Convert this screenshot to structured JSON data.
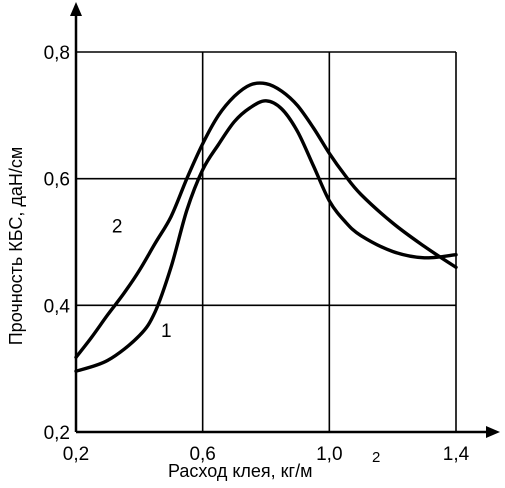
{
  "chart_data": {
    "type": "line",
    "title": "",
    "xlabel": "Расход клея, кг/м",
    "xlabel_superscript": "2",
    "ylabel": "Прочность КБС, даН/см",
    "xlim": [
      0.2,
      1.4
    ],
    "ylim": [
      0.2,
      0.8
    ],
    "xticks": [
      0.2,
      0.6,
      1.0,
      1.4
    ],
    "yticks": [
      0.2,
      0.4,
      0.6,
      0.8
    ],
    "xtick_labels": [
      "0,2",
      "0,6",
      "1,0",
      "1,4"
    ],
    "ytick_labels": [
      "0,2",
      "0,4",
      "0,6",
      "0,8"
    ],
    "grid": true,
    "legend": "none",
    "series": [
      {
        "name": "1",
        "x": [
          0.2,
          0.3,
          0.4,
          0.45,
          0.5,
          0.55,
          0.6,
          0.65,
          0.7,
          0.75,
          0.8,
          0.85,
          0.9,
          0.95,
          1.0,
          1.05,
          1.1,
          1.2,
          1.3,
          1.4
        ],
        "y": [
          0.296,
          0.313,
          0.352,
          0.39,
          0.46,
          0.55,
          0.614,
          0.654,
          0.69,
          0.712,
          0.723,
          0.71,
          0.674,
          0.62,
          0.565,
          0.532,
          0.51,
          0.485,
          0.475,
          0.48
        ]
      },
      {
        "name": "2",
        "x": [
          0.2,
          0.25,
          0.3,
          0.35,
          0.4,
          0.45,
          0.5,
          0.55,
          0.6,
          0.65,
          0.7,
          0.75,
          0.8,
          0.85,
          0.9,
          0.95,
          1.0,
          1.05,
          1.1,
          1.2,
          1.3,
          1.4
        ],
        "y": [
          0.318,
          0.35,
          0.385,
          0.418,
          0.455,
          0.498,
          0.54,
          0.6,
          0.655,
          0.7,
          0.73,
          0.748,
          0.75,
          0.738,
          0.715,
          0.68,
          0.64,
          0.605,
          0.575,
          0.53,
          0.493,
          0.46
        ]
      }
    ],
    "curve_labels": [
      {
        "text": "1",
        "x": 0.485,
        "y": 0.35
      },
      {
        "text": "2",
        "x": 0.33,
        "y": 0.515
      }
    ]
  }
}
